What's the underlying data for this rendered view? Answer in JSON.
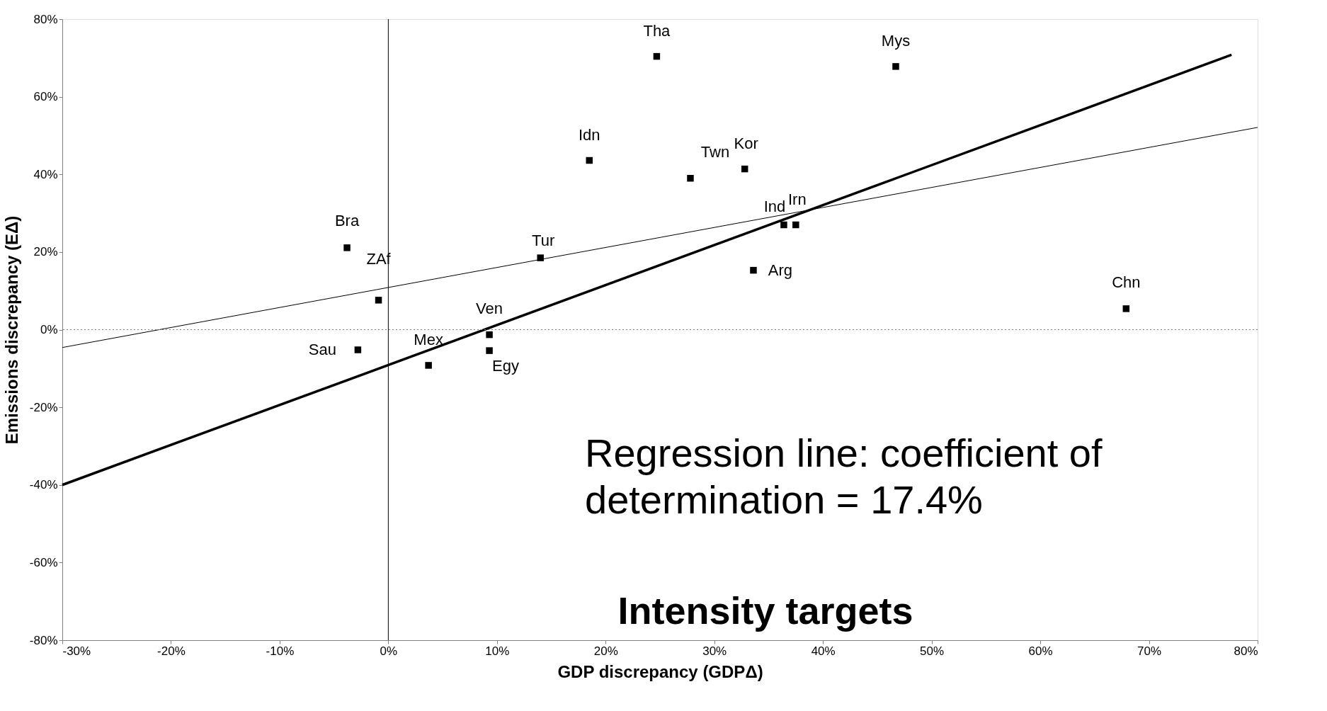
{
  "chart_data": {
    "type": "scatter",
    "title": "Intensity targets",
    "xlabel": "GDP discrepancy (GDPΔ)",
    "ylabel": "Emissions discrepancy (EΔ)",
    "xlim": [
      -30,
      80
    ],
    "ylim": [
      -80,
      80
    ],
    "xticks": [
      {
        "value": -30,
        "label": "-30%"
      },
      {
        "value": -20,
        "label": "-20%"
      },
      {
        "value": -10,
        "label": "-10%"
      },
      {
        "value": 0,
        "label": "0%"
      },
      {
        "value": 10,
        "label": "10%"
      },
      {
        "value": 20,
        "label": "20%"
      },
      {
        "value": 30,
        "label": "30%"
      },
      {
        "value": 40,
        "label": "40%"
      },
      {
        "value": 50,
        "label": "50%"
      },
      {
        "value": 60,
        "label": "60%"
      },
      {
        "value": 70,
        "label": "70%"
      },
      {
        "value": 80,
        "label": "80%"
      }
    ],
    "yticks": [
      {
        "value": -80,
        "label": "-80%"
      },
      {
        "value": -60,
        "label": "-60%"
      },
      {
        "value": -40,
        "label": "-40%"
      },
      {
        "value": -20,
        "label": "-20%"
      },
      {
        "value": 0,
        "label": "0%"
      },
      {
        "value": 20,
        "label": "20%"
      },
      {
        "value": 40,
        "label": "40%"
      },
      {
        "value": 60,
        "label": "60%"
      },
      {
        "value": 80,
        "label": "80%"
      }
    ],
    "grid": false,
    "series": [
      {
        "marker": "square",
        "color": "#000000",
        "x": [
          24.7,
          46.7,
          18.5,
          27.8,
          32.8,
          36.4,
          37.5,
          33.6,
          14.0,
          -3.8,
          -0.9,
          -2.8,
          3.7,
          9.3,
          9.3,
          67.9
        ],
        "values": [
          70.4,
          67.8,
          43.6,
          39.0,
          41.4,
          27.0,
          27.0,
          15.3,
          18.5,
          21.1,
          7.6,
          -5.2,
          -9.2,
          -1.3,
          -5.4,
          5.4
        ]
      },
      {
        "type": "line",
        "marker": "none",
        "color": "#000000",
        "line_style": "solid",
        "x": [
          -30,
          77.6
        ],
        "values": [
          -40,
          70.8
        ]
      },
      {
        "type": "line",
        "marker": "none",
        "color": "#000000",
        "line_style": "solid",
        "x": [
          -30,
          80
        ],
        "values": [
          -4.6,
          52.1
        ]
      }
    ],
    "ref_lines": [
      {
        "axis": "x",
        "value": 0,
        "color": "#000000",
        "line_style": "solid"
      },
      {
        "axis": "y",
        "value": 0,
        "color": "#808080",
        "line_style": "dotted"
      }
    ],
    "annotations": [
      {
        "text": "Tha",
        "x": 24.7,
        "y": 70.4
      },
      {
        "text": "Mys",
        "x": 46.7,
        "y": 67.8
      },
      {
        "text": "Idn",
        "x": 18.5,
        "y": 43.6
      },
      {
        "text": "Twn",
        "x": 27.8,
        "y": 39.0
      },
      {
        "text": "Kor",
        "x": 32.8,
        "y": 41.4
      },
      {
        "text": "Ind",
        "x": 36.4,
        "y": 27.0
      },
      {
        "text": "Irn",
        "x": 37.5,
        "y": 27.0
      },
      {
        "text": "Arg",
        "x": 33.6,
        "y": 15.3
      },
      {
        "text": "Tur",
        "x": 14.0,
        "y": 18.5
      },
      {
        "text": "Bra",
        "x": -3.8,
        "y": 21.1
      },
      {
        "text": "ZAf",
        "x": -0.9,
        "y": 7.6
      },
      {
        "text": "Sau",
        "x": -2.8,
        "y": -5.2
      },
      {
        "text": "Mex",
        "x": 3.7,
        "y": -9.2
      },
      {
        "text": "Ven",
        "x": 9.3,
        "y": -1.3
      },
      {
        "text": "Egy",
        "x": 9.3,
        "y": -5.4
      },
      {
        "text": "Chn",
        "x": 67.9,
        "y": 5.4
      },
      "Regression line: coefficient of determination = 17.4%"
    ]
  }
}
